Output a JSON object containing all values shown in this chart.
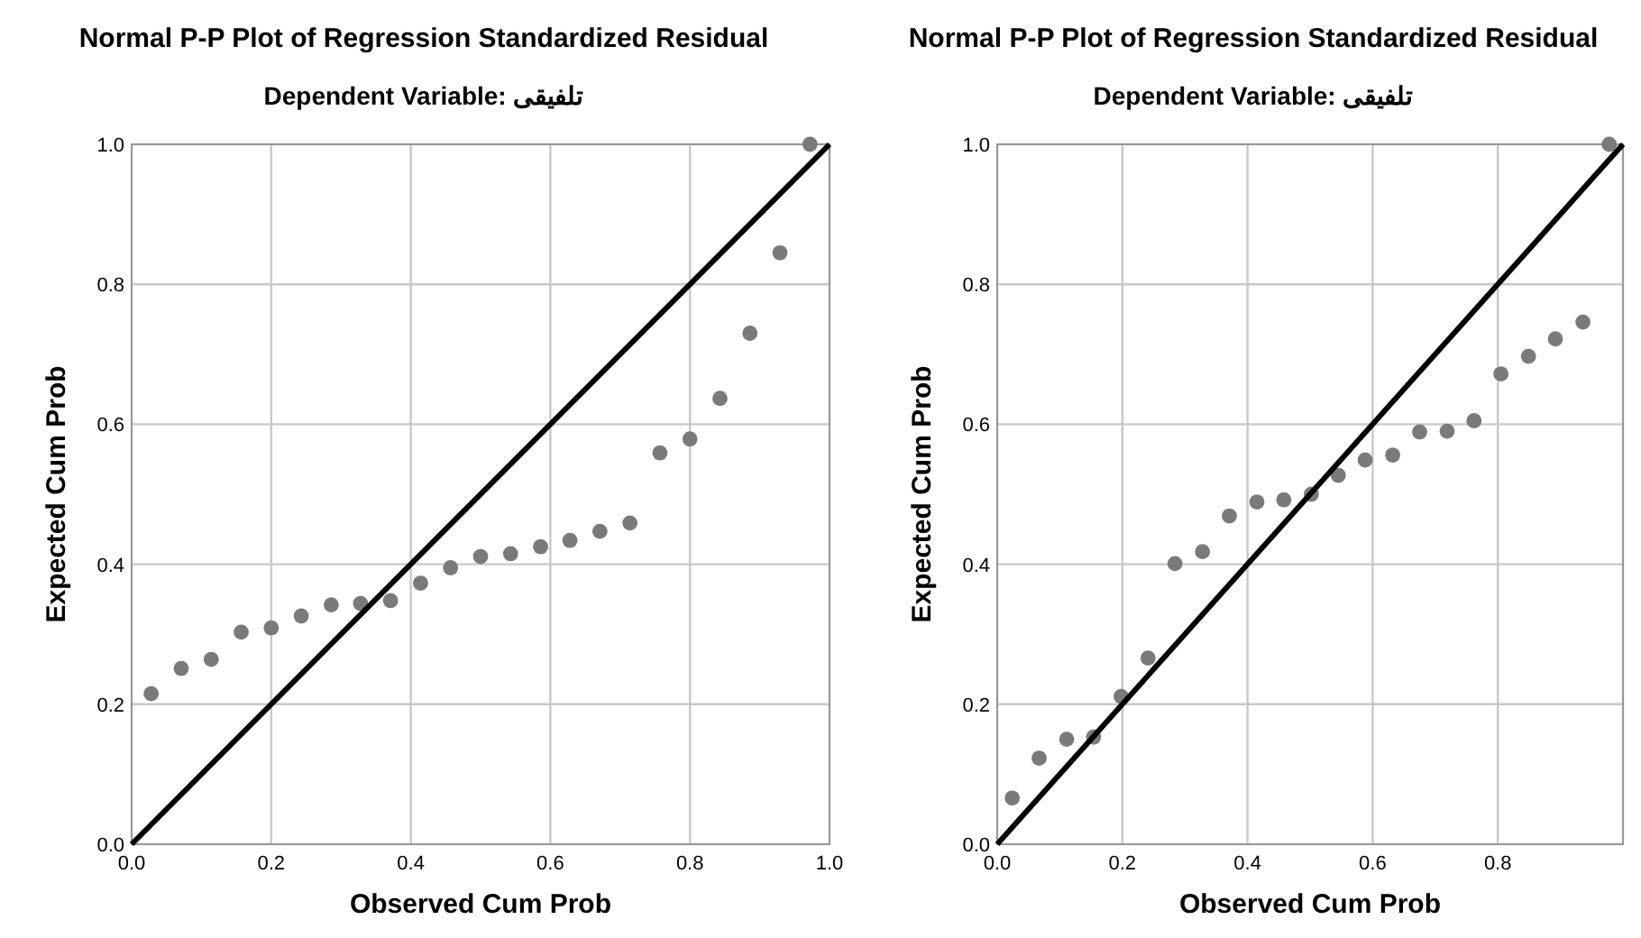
{
  "chart_data": [
    {
      "type": "scatter",
      "title": "Normal P-P Plot of Regression Standardized Residual",
      "subtitle": "Dependent Variable: تلفیقی",
      "xlabel": "Observed Cum Prob",
      "ylabel": "Expected Cum Prob",
      "xlim": [
        0,
        1
      ],
      "ylim": [
        0,
        1
      ],
      "xticks": [
        {
          "value": 0,
          "label": "0.0"
        },
        {
          "value": 0.2,
          "label": "0.2"
        },
        {
          "value": 0.4,
          "label": "0.4"
        },
        {
          "value": 0.6,
          "label": "0.6"
        },
        {
          "value": 0.8,
          "label": "0.8"
        },
        {
          "value": 1,
          "label": "1.0"
        }
      ],
      "yticks": [
        {
          "value": 0,
          "label": "0.0"
        },
        {
          "value": 0.2,
          "label": "0.2"
        },
        {
          "value": 0.4,
          "label": "0.4"
        },
        {
          "value": 0.6,
          "label": "0.6"
        },
        {
          "value": 0.8,
          "label": "0.8"
        },
        {
          "value": 1,
          "label": "1.0"
        }
      ],
      "grid": true,
      "series": [
        {
          "marker": "circle",
          "color": "#7a7a7a",
          "x": [
            0.028,
            0.071,
            0.114,
            0.157,
            0.2,
            0.243,
            0.286,
            0.328,
            0.371,
            0.414,
            0.457,
            0.5,
            0.543,
            0.586,
            0.628,
            0.671,
            0.714,
            0.757,
            0.8,
            0.843,
            0.886,
            0.929,
            0.972
          ],
          "values": [
            0.215,
            0.251,
            0.264,
            0.303,
            0.309,
            0.326,
            0.342,
            0.344,
            0.348,
            0.373,
            0.395,
            0.411,
            0.415,
            0.425,
            0.434,
            0.447,
            0.459,
            0.559,
            0.579,
            0.637,
            0.73,
            0.845,
            1.0
          ]
        },
        {
          "type": "line",
          "color": "#000000",
          "x": [
            0,
            1
          ],
          "values": [
            0,
            1
          ]
        }
      ]
    },
    {
      "type": "scatter",
      "title": "Normal P-P Plot of Regression Standardized Residual",
      "subtitle": "Dependent Variable: تلفیقی",
      "xlabel": "Observed Cum Prob",
      "ylabel": "Expected Cum Prob",
      "xlim": [
        0,
        1
      ],
      "ylim": [
        0,
        1
      ],
      "xticks": [
        {
          "value": 0,
          "label": "0.0"
        },
        {
          "value": 0.2,
          "label": "0.2"
        },
        {
          "value": 0.4,
          "label": "0.4"
        },
        {
          "value": 0.6,
          "label": "0.6"
        },
        {
          "value": 0.8,
          "label": "0.8"
        },
        {
          "value": 1,
          "label": null
        }
      ],
      "yticks": [
        {
          "value": 0,
          "label": "0.0"
        },
        {
          "value": 0.2,
          "label": "0.2"
        },
        {
          "value": 0.4,
          "label": "0.4"
        },
        {
          "value": 0.6,
          "label": "0.6"
        },
        {
          "value": 0.8,
          "label": "0.8"
        },
        {
          "value": 1,
          "label": "1.0"
        }
      ],
      "grid": true,
      "series": [
        {
          "marker": "circle",
          "color": "#7a7a7a",
          "x": [
            0.024,
            0.067,
            0.111,
            0.154,
            0.198,
            0.241,
            0.284,
            0.328,
            0.371,
            0.415,
            0.458,
            0.502,
            0.545,
            0.588,
            0.632,
            0.675,
            0.719,
            0.762,
            0.805,
            0.849,
            0.892,
            0.936,
            0.978
          ],
          "values": [
            0.066,
            0.123,
            0.15,
            0.153,
            0.211,
            0.266,
            0.401,
            0.418,
            0.469,
            0.489,
            0.492,
            0.5,
            0.527,
            0.549,
            0.556,
            0.589,
            0.59,
            0.605,
            0.672,
            0.697,
            0.722,
            0.746,
            1.0
          ]
        },
        {
          "type": "line",
          "color": "#000000",
          "x": [
            0,
            1
          ],
          "values": [
            0,
            1
          ]
        }
      ]
    }
  ]
}
